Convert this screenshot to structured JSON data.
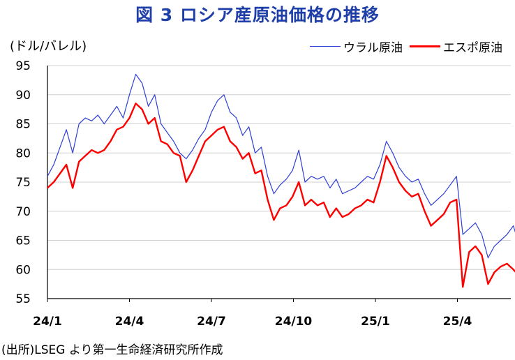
{
  "page": {
    "title": "図 3  ロシア産原油価格の推移",
    "unit": "(ドル/バレル)",
    "source": "(出所)LSEG より第一生命経済研究所作成"
  },
  "chart_data": {
    "type": "line",
    "title": "図 3  ロシア産原油価格の推移",
    "ylabel": "(ドル/バレル)",
    "xlabel": "",
    "ylim": [
      55,
      95
    ],
    "yticks": [
      55,
      60,
      65,
      70,
      75,
      80,
      85,
      90,
      95
    ],
    "xticks": [
      "24/1",
      "24/4",
      "24/7",
      "24/10",
      "25/1",
      "25/4"
    ],
    "legend_position": "top-right",
    "grid": true,
    "colors": {
      "ウラル原油": "#2e3fd6",
      "エスポ原油": "#ff0000"
    },
    "series": [
      {
        "name": "ウラル原油",
        "values": [
          [
            "2024-01-01",
            76.0
          ],
          [
            "2024-01-08",
            78.0
          ],
          [
            "2024-01-15",
            81.0
          ],
          [
            "2024-01-22",
            84.0
          ],
          [
            "2024-01-29",
            80.0
          ],
          [
            "2024-02-05",
            85.0
          ],
          [
            "2024-02-12",
            86.0
          ],
          [
            "2024-02-19",
            85.5
          ],
          [
            "2024-02-26",
            86.5
          ],
          [
            "2024-03-04",
            85.0
          ],
          [
            "2024-03-11",
            86.5
          ],
          [
            "2024-03-18",
            88.0
          ],
          [
            "2024-03-25",
            86.0
          ],
          [
            "2024-04-01",
            90.0
          ],
          [
            "2024-04-08",
            93.5
          ],
          [
            "2024-04-15",
            92.0
          ],
          [
            "2024-04-22",
            88.0
          ],
          [
            "2024-04-29",
            90.0
          ],
          [
            "2024-05-06",
            85.0
          ],
          [
            "2024-05-13",
            83.5
          ],
          [
            "2024-05-20",
            82.0
          ],
          [
            "2024-05-27",
            80.0
          ],
          [
            "2024-06-03",
            79.0
          ],
          [
            "2024-06-10",
            80.5
          ],
          [
            "2024-06-17",
            82.5
          ],
          [
            "2024-06-24",
            84.0
          ],
          [
            "2024-07-01",
            87.0
          ],
          [
            "2024-07-08",
            89.0
          ],
          [
            "2024-07-15",
            90.0
          ],
          [
            "2024-07-22",
            87.0
          ],
          [
            "2024-07-29",
            86.0
          ],
          [
            "2024-08-05",
            83.0
          ],
          [
            "2024-08-12",
            84.5
          ],
          [
            "2024-08-19",
            80.0
          ],
          [
            "2024-08-26",
            81.0
          ],
          [
            "2024-09-02",
            76.0
          ],
          [
            "2024-09-09",
            73.0
          ],
          [
            "2024-09-16",
            74.5
          ],
          [
            "2024-09-23",
            75.5
          ],
          [
            "2024-09-30",
            77.0
          ],
          [
            "2024-10-07",
            80.5
          ],
          [
            "2024-10-14",
            75.0
          ],
          [
            "2024-10-21",
            76.0
          ],
          [
            "2024-10-28",
            75.5
          ],
          [
            "2024-11-04",
            76.0
          ],
          [
            "2024-11-11",
            74.0
          ],
          [
            "2024-11-18",
            75.5
          ],
          [
            "2024-11-25",
            73.0
          ],
          [
            "2024-12-02",
            73.5
          ],
          [
            "2024-12-09",
            74.0
          ],
          [
            "2024-12-16",
            75.0
          ],
          [
            "2024-12-23",
            76.0
          ],
          [
            "2024-12-30",
            75.5
          ],
          [
            "2025-01-06",
            78.0
          ],
          [
            "2025-01-13",
            82.0
          ],
          [
            "2025-01-20",
            80.0
          ],
          [
            "2025-01-27",
            77.5
          ],
          [
            "2025-02-03",
            76.0
          ],
          [
            "2025-02-10",
            75.0
          ],
          [
            "2025-02-17",
            75.5
          ],
          [
            "2025-02-24",
            73.0
          ],
          [
            "2025-03-03",
            71.0
          ],
          [
            "2025-03-10",
            72.0
          ],
          [
            "2025-03-17",
            73.0
          ],
          [
            "2025-03-24",
            74.5
          ],
          [
            "2025-03-31",
            76.0
          ],
          [
            "2025-04-07",
            66.0
          ],
          [
            "2025-04-14",
            67.0
          ],
          [
            "2025-04-21",
            68.0
          ],
          [
            "2025-04-28",
            66.0
          ],
          [
            "2025-05-05",
            62.0
          ],
          [
            "2025-05-12",
            64.0
          ],
          [
            "2025-05-19",
            65.0
          ],
          [
            "2025-05-26",
            66.0
          ],
          [
            "2025-06-02",
            67.5
          ],
          [
            "2025-06-05",
            66.0
          ]
        ]
      },
      {
        "name": "エスポ原油",
        "values": [
          [
            "2024-01-01",
            74.0
          ],
          [
            "2024-01-08",
            75.0
          ],
          [
            "2024-01-15",
            76.5
          ],
          [
            "2024-01-22",
            78.0
          ],
          [
            "2024-01-29",
            74.0
          ],
          [
            "2024-02-05",
            78.5
          ],
          [
            "2024-02-12",
            79.5
          ],
          [
            "2024-02-19",
            80.5
          ],
          [
            "2024-02-26",
            80.0
          ],
          [
            "2024-03-04",
            80.5
          ],
          [
            "2024-03-11",
            82.0
          ],
          [
            "2024-03-18",
            84.0
          ],
          [
            "2024-03-25",
            84.5
          ],
          [
            "2024-04-01",
            86.0
          ],
          [
            "2024-04-08",
            88.5
          ],
          [
            "2024-04-15",
            87.5
          ],
          [
            "2024-04-22",
            85.0
          ],
          [
            "2024-04-29",
            86.0
          ],
          [
            "2024-05-06",
            82.0
          ],
          [
            "2024-05-13",
            81.5
          ],
          [
            "2024-05-20",
            80.0
          ],
          [
            "2024-05-27",
            79.5
          ],
          [
            "2024-06-03",
            75.0
          ],
          [
            "2024-06-10",
            77.0
          ],
          [
            "2024-06-17",
            79.5
          ],
          [
            "2024-06-24",
            82.0
          ],
          [
            "2024-07-01",
            83.0
          ],
          [
            "2024-07-08",
            84.0
          ],
          [
            "2024-07-15",
            84.5
          ],
          [
            "2024-07-22",
            82.0
          ],
          [
            "2024-07-29",
            81.0
          ],
          [
            "2024-08-05",
            79.0
          ],
          [
            "2024-08-12",
            80.0
          ],
          [
            "2024-08-19",
            76.5
          ],
          [
            "2024-08-26",
            77.0
          ],
          [
            "2024-09-02",
            72.0
          ],
          [
            "2024-09-09",
            68.5
          ],
          [
            "2024-09-16",
            70.5
          ],
          [
            "2024-09-23",
            71.0
          ],
          [
            "2024-09-30",
            72.5
          ],
          [
            "2024-10-07",
            75.0
          ],
          [
            "2024-10-14",
            71.0
          ],
          [
            "2024-10-21",
            72.0
          ],
          [
            "2024-10-28",
            71.0
          ],
          [
            "2024-11-04",
            71.5
          ],
          [
            "2024-11-11",
            69.0
          ],
          [
            "2024-11-18",
            70.5
          ],
          [
            "2024-11-25",
            69.0
          ],
          [
            "2024-12-02",
            69.5
          ],
          [
            "2024-12-09",
            70.5
          ],
          [
            "2024-12-16",
            71.0
          ],
          [
            "2024-12-23",
            72.0
          ],
          [
            "2024-12-30",
            71.5
          ],
          [
            "2025-01-06",
            75.0
          ],
          [
            "2025-01-13",
            79.5
          ],
          [
            "2025-01-20",
            77.5
          ],
          [
            "2025-01-27",
            75.0
          ],
          [
            "2025-02-03",
            73.5
          ],
          [
            "2025-02-10",
            72.5
          ],
          [
            "2025-02-17",
            73.0
          ],
          [
            "2025-02-24",
            70.0
          ],
          [
            "2025-03-03",
            67.5
          ],
          [
            "2025-03-10",
            68.5
          ],
          [
            "2025-03-17",
            69.5
          ],
          [
            "2025-03-24",
            71.5
          ],
          [
            "2025-03-31",
            72.0
          ],
          [
            "2025-04-07",
            57.0
          ],
          [
            "2025-04-14",
            63.0
          ],
          [
            "2025-04-21",
            64.0
          ],
          [
            "2025-04-28",
            62.5
          ],
          [
            "2025-05-05",
            57.5
          ],
          [
            "2025-05-12",
            59.5
          ],
          [
            "2025-05-19",
            60.5
          ],
          [
            "2025-05-26",
            61.0
          ],
          [
            "2025-06-02",
            60.0
          ],
          [
            "2025-06-05",
            59.5
          ]
        ]
      }
    ]
  }
}
